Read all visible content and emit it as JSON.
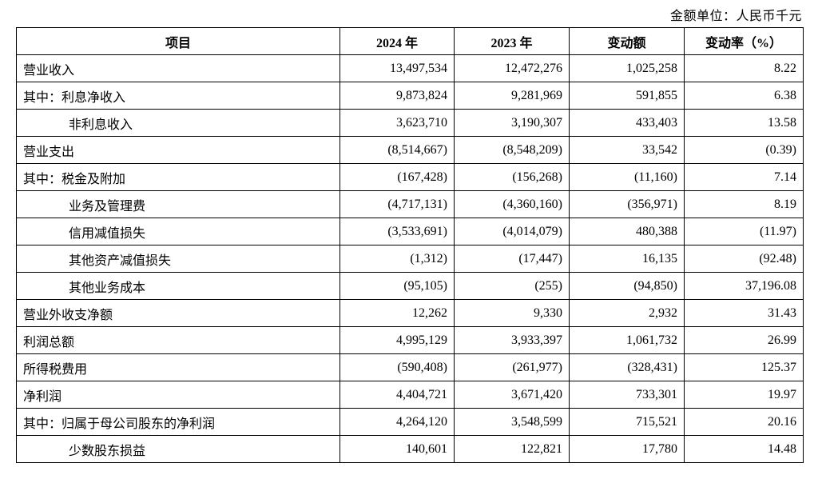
{
  "unit_label": "金额单位：人民币千元",
  "table": {
    "headers": [
      "项目",
      "2024 年",
      "2023 年",
      "变动额",
      "变动率（%）"
    ],
    "rows": [
      {
        "item": "营业收入",
        "indent": false,
        "y2024": "13,497,534",
        "y2023": "12,472,276",
        "change": "1,025,258",
        "rate": "8.22"
      },
      {
        "item": "其中：利息净收入",
        "indent": false,
        "y2024": "9,873,824",
        "y2023": "9,281,969",
        "change": "591,855",
        "rate": "6.38"
      },
      {
        "item": "非利息收入",
        "indent": true,
        "y2024": "3,623,710",
        "y2023": "3,190,307",
        "change": "433,403",
        "rate": "13.58"
      },
      {
        "item": "营业支出",
        "indent": false,
        "y2024": "(8,514,667)",
        "y2023": "(8,548,209)",
        "change": "33,542",
        "rate": "(0.39)"
      },
      {
        "item": "其中：税金及附加",
        "indent": false,
        "y2024": "(167,428)",
        "y2023": "(156,268)",
        "change": "(11,160)",
        "rate": "7.14"
      },
      {
        "item": "业务及管理费",
        "indent": true,
        "y2024": "(4,717,131)",
        "y2023": "(4,360,160)",
        "change": "(356,971)",
        "rate": "8.19"
      },
      {
        "item": "信用减值损失",
        "indent": true,
        "y2024": "(3,533,691)",
        "y2023": "(4,014,079)",
        "change": "480,388",
        "rate": "(11.97)"
      },
      {
        "item": "其他资产减值损失",
        "indent": true,
        "y2024": "(1,312)",
        "y2023": "(17,447)",
        "change": "16,135",
        "rate": "(92.48)"
      },
      {
        "item": "其他业务成本",
        "indent": true,
        "y2024": "(95,105)",
        "y2023": "(255)",
        "change": "(94,850)",
        "rate": "37,196.08"
      },
      {
        "item": "营业外收支净额",
        "indent": false,
        "y2024": "12,262",
        "y2023": "9,330",
        "change": "2,932",
        "rate": "31.43"
      },
      {
        "item": "利润总额",
        "indent": false,
        "y2024": "4,995,129",
        "y2023": "3,933,397",
        "change": "1,061,732",
        "rate": "26.99"
      },
      {
        "item": "所得税费用",
        "indent": false,
        "y2024": "(590,408)",
        "y2023": "(261,977)",
        "change": "(328,431)",
        "rate": "125.37"
      },
      {
        "item": "净利润",
        "indent": false,
        "y2024": "4,404,721",
        "y2023": "3,671,420",
        "change": "733,301",
        "rate": "19.97"
      },
      {
        "item": "其中：归属于母公司股东的净利润",
        "indent": false,
        "y2024": "4,264,120",
        "y2023": "3,548,599",
        "change": "715,521",
        "rate": "20.16"
      },
      {
        "item": "少数股东损益",
        "indent": true,
        "y2024": "140,601",
        "y2023": "122,821",
        "change": "17,780",
        "rate": "14.48"
      }
    ]
  }
}
